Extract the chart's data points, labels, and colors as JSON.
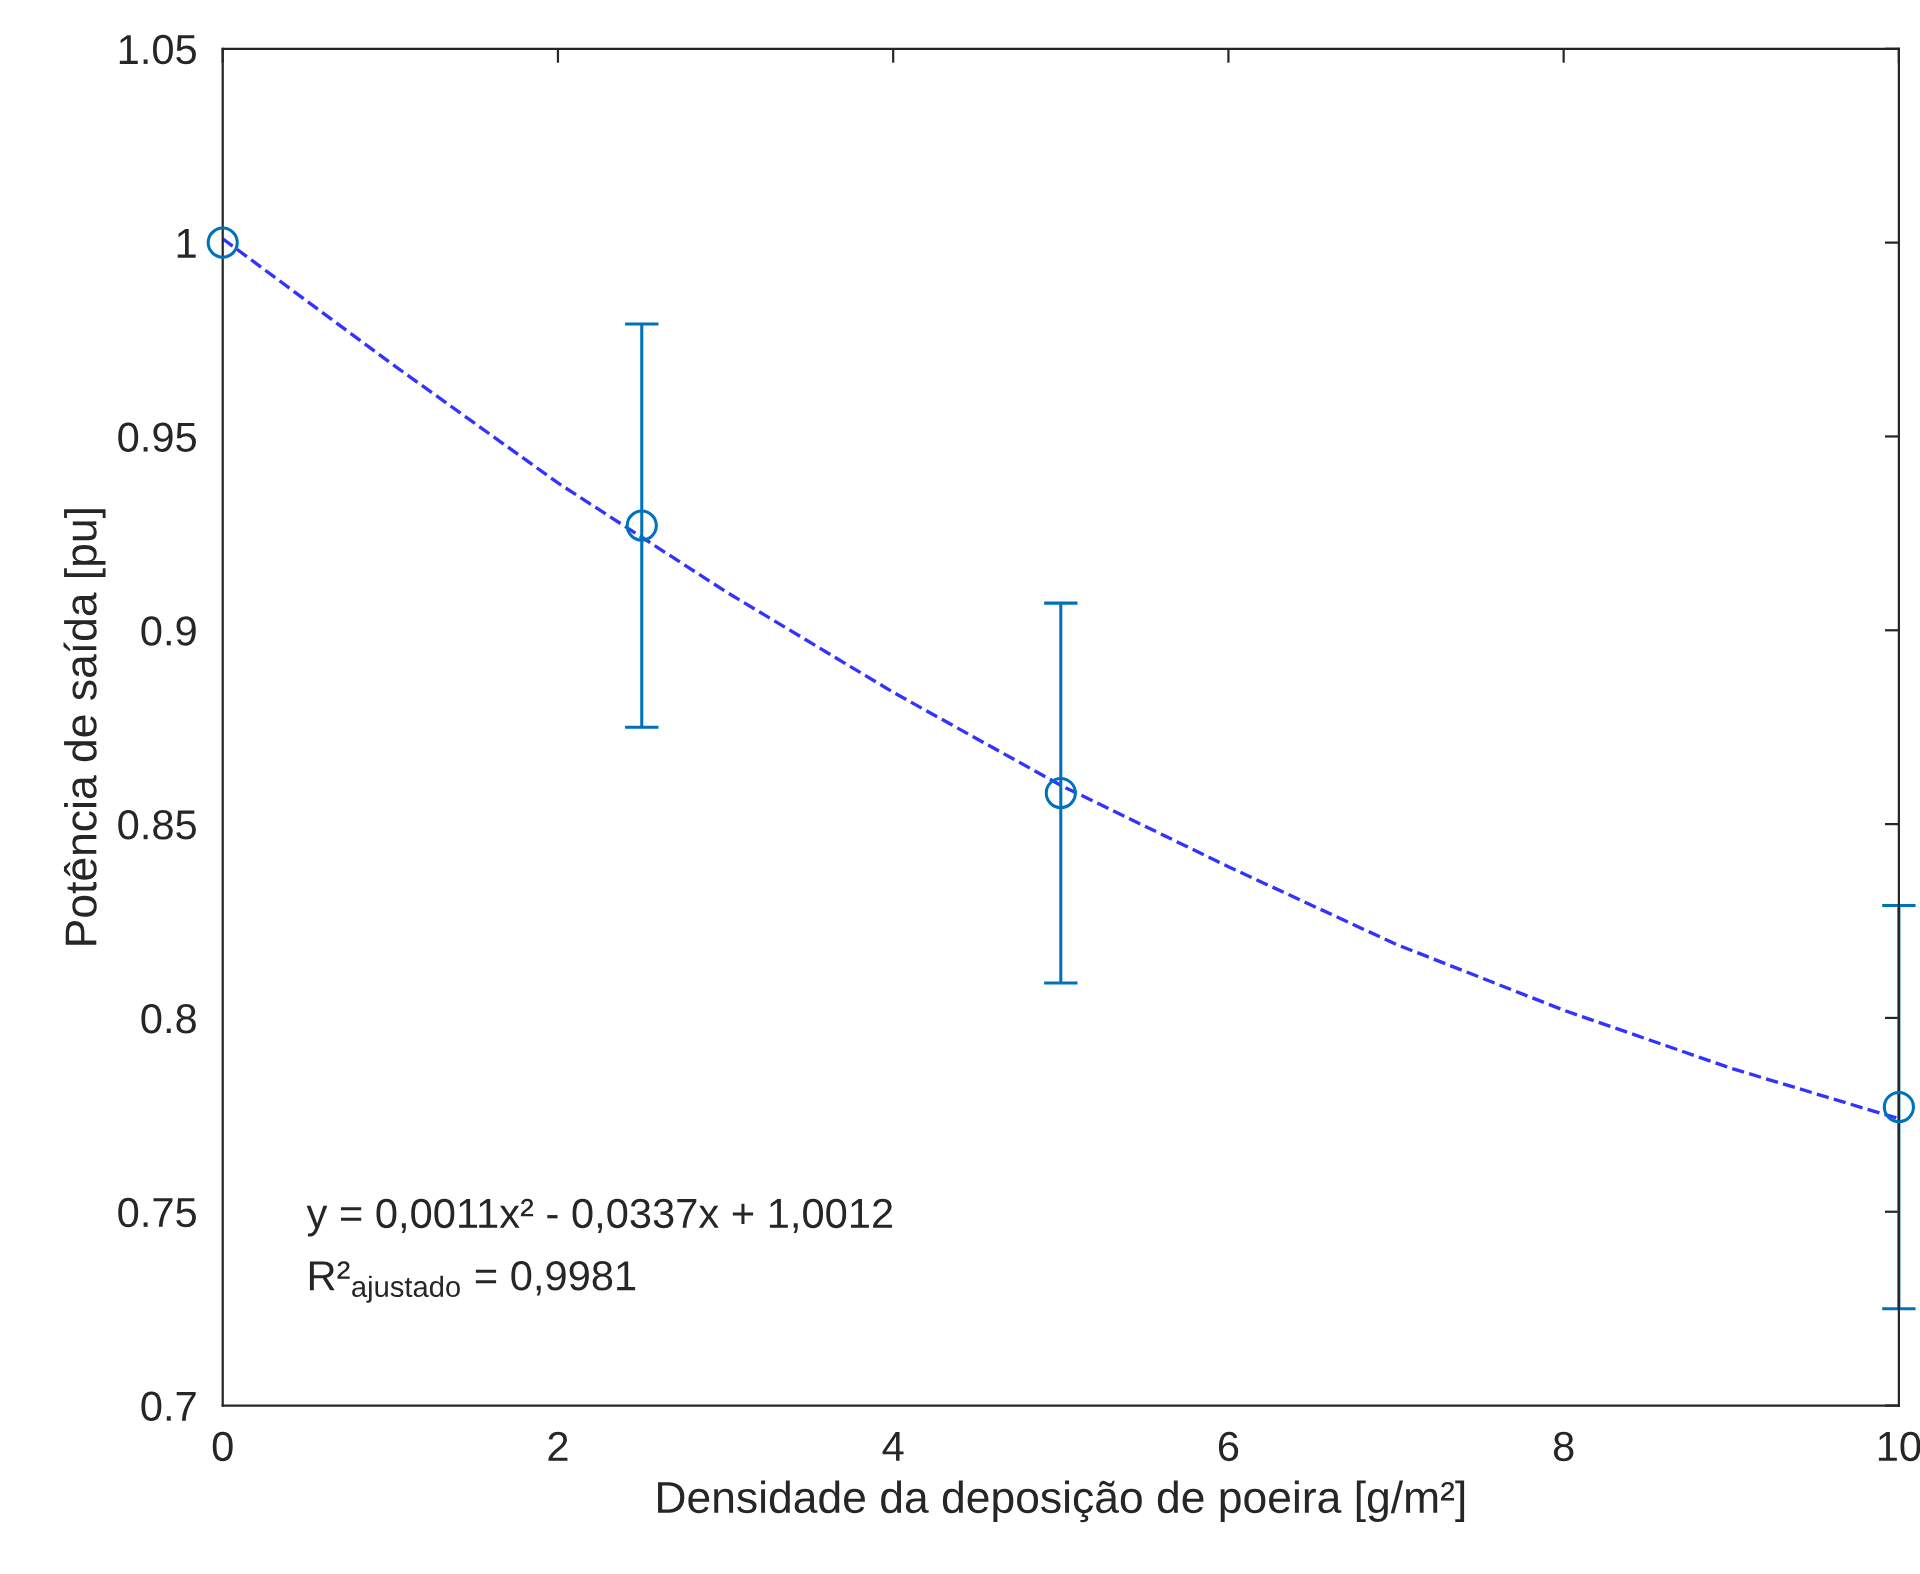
{
  "chart_data": {
    "type": "scatter",
    "xlabel": "Densidade da deposição de poeira [g/m²]",
    "ylabel": "Potência de saída [pu]",
    "xlim": [
      0,
      10
    ],
    "xticks": [
      0,
      2,
      4,
      6,
      8,
      10
    ],
    "ylim": [
      0.7,
      1.05
    ],
    "yticks": [
      {
        "value": 0.7,
        "label": "0.7"
      },
      0.75,
      {
        "value": 0.8,
        "label": "0.8"
      },
      0.85,
      {
        "value": 0.9,
        "label": "0.9"
      },
      0.95,
      1,
      1.05
    ],
    "grid": false,
    "series": [
      {
        "type": "line",
        "color": "#3333ff",
        "line_style": "dashed",
        "marker": "none",
        "x": [
          0,
          1,
          2,
          3,
          4,
          5,
          6,
          7,
          8,
          9,
          10
        ],
        "values": [
          1.001,
          0.969,
          0.938,
          0.91,
          0.884,
          0.86,
          0.839,
          0.819,
          0.802,
          0.787,
          0.774
        ]
      },
      {
        "color": "#0072bd",
        "marker": "circle",
        "x": [
          0,
          2.5,
          5,
          10
        ],
        "values": [
          1.0,
          0.927,
          0.858,
          0.777
        ],
        "errors": [
          null,
          [
            0.875,
            0.979
          ],
          [
            0.809,
            0.907
          ],
          [
            0.725,
            0.829
          ]
        ]
      }
    ],
    "annotations": [
      "y = 0,0011x² - 0,0337x + 1,0012",
      "R²$_{ajustado}$ = 0,9981"
    ]
  }
}
